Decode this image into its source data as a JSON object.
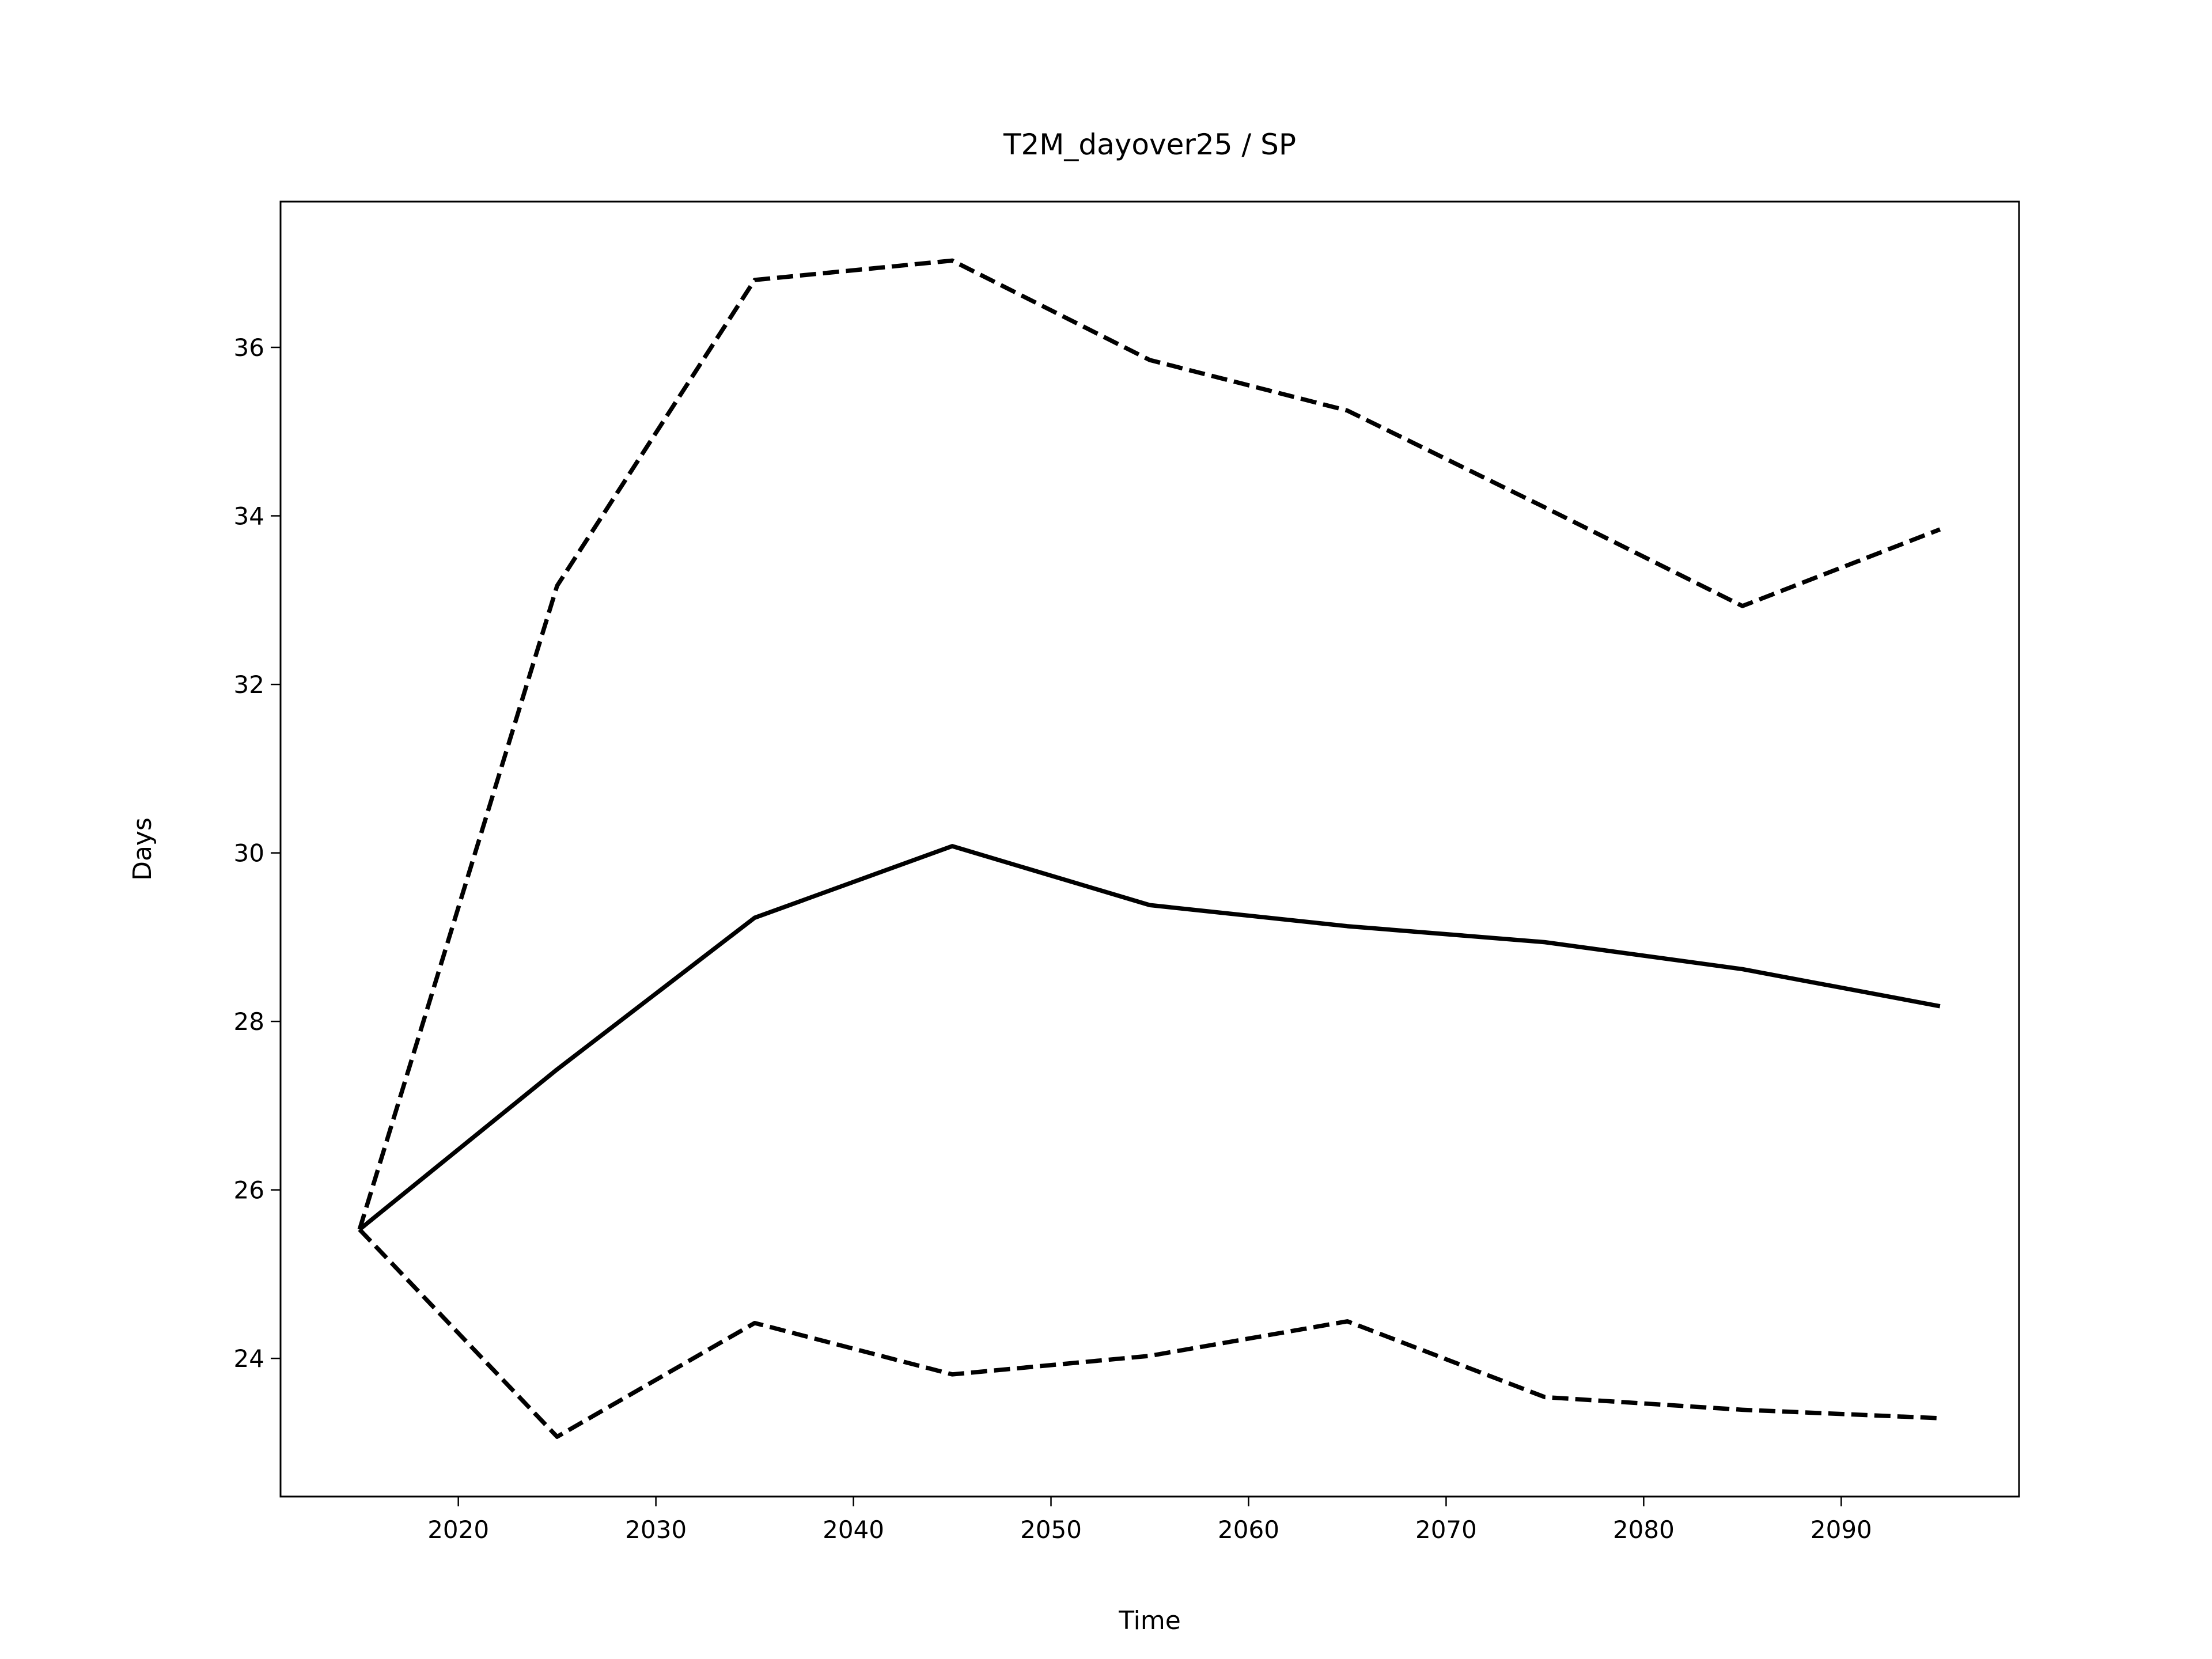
{
  "chart_data": {
    "type": "line",
    "title": "T2M_dayover25 / SP",
    "xlabel": "Time",
    "ylabel": "Days",
    "x": [
      2015,
      2025,
      2035,
      2045,
      2055,
      2065,
      2075,
      2085,
      2095
    ],
    "series": [
      {
        "color": "#000000",
        "linestyle": "solid",
        "values": [
          25.53,
          27.43,
          29.23,
          30.08,
          29.38,
          29.13,
          28.94,
          28.62,
          28.18
        ]
      },
      {
        "color": "#000000",
        "linestyle": "dashed",
        "values": [
          25.53,
          33.17,
          36.8,
          37.03,
          35.85,
          35.25,
          34.1,
          32.93,
          33.84
        ]
      },
      {
        "color": "#000000",
        "linestyle": "dashed",
        "values": [
          25.53,
          23.07,
          24.42,
          23.81,
          24.03,
          24.44,
          23.54,
          23.39,
          23.29
        ]
      }
    ],
    "xlim": [
      2011,
      2099
    ],
    "xticks": [
      2020,
      2030,
      2040,
      2050,
      2060,
      2070,
      2080,
      2090
    ],
    "ylim": [
      22.36,
      37.73
    ],
    "yticks": [
      24,
      26,
      28,
      30,
      32,
      34,
      36
    ],
    "grid": false
  }
}
